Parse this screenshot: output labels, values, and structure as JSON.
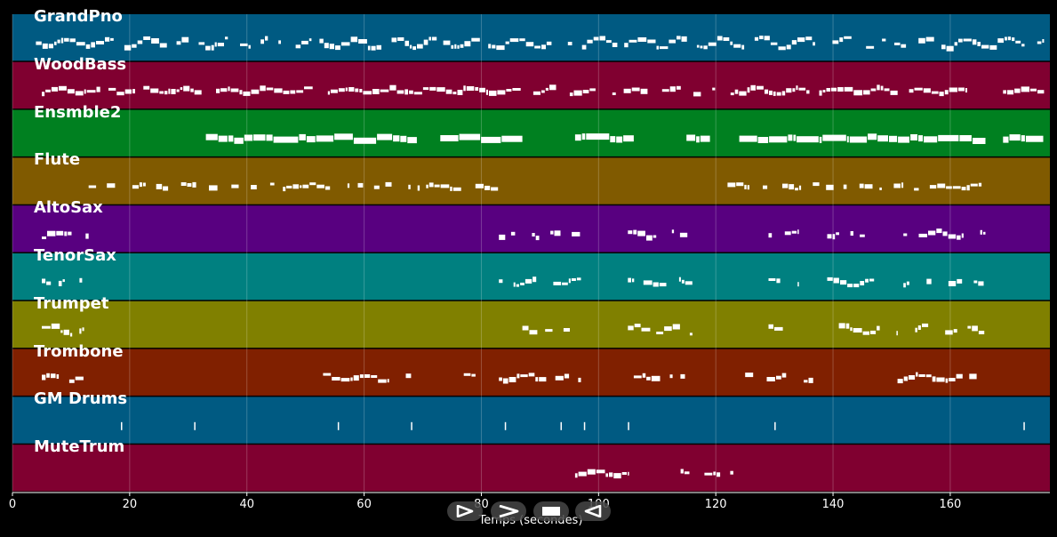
{
  "chart_data": {
    "type": "piano-roll",
    "xlabel": "Temps (secondes)",
    "xlim": [
      0,
      177
    ],
    "x_ticks": [
      "0",
      "20",
      "40",
      "60",
      "80",
      "100",
      "120",
      "140",
      "160"
    ],
    "x_tick_values": [
      0,
      20,
      40,
      60,
      80,
      100,
      120,
      140,
      160
    ],
    "grid": true,
    "tracks": [
      {
        "name": "GrandPno",
        "color": "#005a82",
        "segments": [
          [
            4,
            176
          ]
        ],
        "density": 0.9,
        "pitch_spread": 0.5
      },
      {
        "name": "WoodBass",
        "color": "#800030",
        "segments": [
          [
            5,
            165
          ],
          [
            169,
            176
          ]
        ],
        "density": 0.9,
        "pitch_spread": 0.25
      },
      {
        "name": "Ensmble2",
        "color": "#008020",
        "segments": [
          [
            33,
            69
          ],
          [
            73,
            87
          ],
          [
            96,
            106
          ],
          [
            115,
            119
          ],
          [
            124,
            166
          ],
          [
            169,
            176
          ]
        ],
        "density": 1.0,
        "pitch_spread": 0.1
      },
      {
        "name": "Flute",
        "color": "#805a00",
        "segments": [
          [
            13,
            83
          ],
          [
            122,
            166
          ]
        ],
        "density": 0.6,
        "pitch_spread": 0.2
      },
      {
        "name": "AltoSax",
        "color": "#580080",
        "segments": [
          [
            5,
            13
          ],
          [
            83,
            97
          ],
          [
            105,
            116
          ],
          [
            129,
            134
          ],
          [
            139,
            147
          ],
          [
            152,
            166
          ]
        ],
        "density": 0.7,
        "pitch_spread": 0.3
      },
      {
        "name": "TenorSax",
        "color": "#008080",
        "segments": [
          [
            5,
            13
          ],
          [
            83,
            97
          ],
          [
            105,
            116
          ],
          [
            129,
            134
          ],
          [
            139,
            147
          ],
          [
            152,
            166
          ]
        ],
        "density": 0.7,
        "pitch_spread": 0.3
      },
      {
        "name": "Trumpet",
        "color": "#808000",
        "segments": [
          [
            5,
            13
          ],
          [
            87,
            97
          ],
          [
            105,
            116
          ],
          [
            129,
            133
          ],
          [
            141,
            151
          ],
          [
            154,
            166
          ]
        ],
        "density": 0.6,
        "pitch_spread": 0.4
      },
      {
        "name": "Trombone",
        "color": "#802000",
        "segments": [
          [
            5,
            13
          ],
          [
            53,
            68
          ],
          [
            77,
            79
          ],
          [
            83,
            97
          ],
          [
            106,
            115
          ],
          [
            125,
            132
          ],
          [
            135,
            137
          ],
          [
            151,
            166
          ]
        ],
        "density": 0.7,
        "pitch_spread": 0.3
      },
      {
        "name": "GM Drums",
        "color": "#005a82",
        "segments": [],
        "density": 0,
        "pitch_spread": 0,
        "hits": [
          18.5,
          31,
          55.5,
          68,
          84,
          93.5,
          97.5,
          105,
          130,
          172.5
        ]
      },
      {
        "name": "MuteTrum",
        "color": "#800030",
        "segments": [
          [
            96,
            105
          ],
          [
            114,
            123
          ]
        ],
        "density": 0.9,
        "pitch_spread": 0.2
      }
    ]
  },
  "controls": {
    "icons": [
      "play-icon",
      "fast-forward-icon",
      "stop-icon",
      "rewind-icon"
    ]
  }
}
